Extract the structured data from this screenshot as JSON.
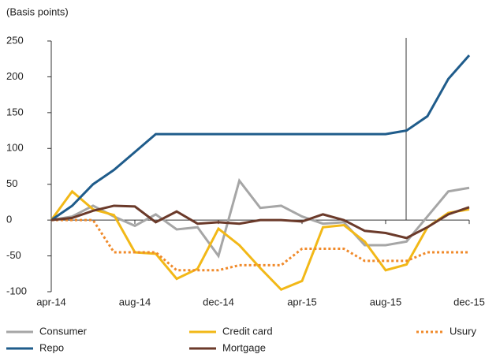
{
  "chart_data": {
    "type": "line",
    "y_label": "(Basis points)",
    "categories": [
      "apr-14",
      null,
      null,
      null,
      "aug-14",
      null,
      null,
      null,
      "dec-14",
      null,
      null,
      null,
      "apr-15",
      null,
      null,
      null,
      "aug-15",
      null,
      null,
      null,
      "dec-15"
    ],
    "ylim": [
      -100,
      250
    ],
    "yticks": [
      -100,
      -50,
      0,
      50,
      100,
      150,
      200,
      250
    ],
    "series": [
      {
        "name": "Consumer",
        "color": "#a6a6a6",
        "dash": false,
        "values": [
          0,
          5,
          20,
          5,
          -8,
          8,
          -13,
          -10,
          -50,
          55,
          17,
          20,
          5,
          -5,
          -3,
          -35,
          -35,
          -30,
          5,
          40,
          45
        ]
      },
      {
        "name": "Credit card",
        "color": "#f2b817",
        "dash": false,
        "values": [
          0,
          40,
          15,
          7,
          -45,
          -47,
          -82,
          -68,
          -12,
          -35,
          -67,
          -97,
          -85,
          -10,
          -7,
          -30,
          -70,
          -62,
          -10,
          10,
          15
        ]
      },
      {
        "name": "Usury",
        "color": "#f08a2a",
        "dash": true,
        "values": [
          0,
          0,
          0,
          -45,
          -45,
          -45,
          -70,
          -70,
          -70,
          -63,
          -63,
          -63,
          -40,
          -40,
          -40,
          -57,
          -57,
          -57,
          -45,
          -45,
          -45
        ]
      },
      {
        "name": "Repo",
        "color": "#1f5c8b",
        "dash": false,
        "values": [
          0,
          20,
          50,
          70,
          95,
          120,
          120,
          120,
          120,
          120,
          120,
          120,
          120,
          120,
          120,
          120,
          120,
          125,
          145,
          197,
          230
        ]
      },
      {
        "name": "Mortgage",
        "color": "#6b3a2a",
        "dash": false,
        "values": [
          0,
          3,
          13,
          20,
          19,
          -3,
          12,
          -5,
          -3,
          -5,
          0,
          0,
          -2,
          8,
          0,
          -15,
          -18,
          -25,
          -10,
          8,
          18
        ]
      }
    ]
  }
}
